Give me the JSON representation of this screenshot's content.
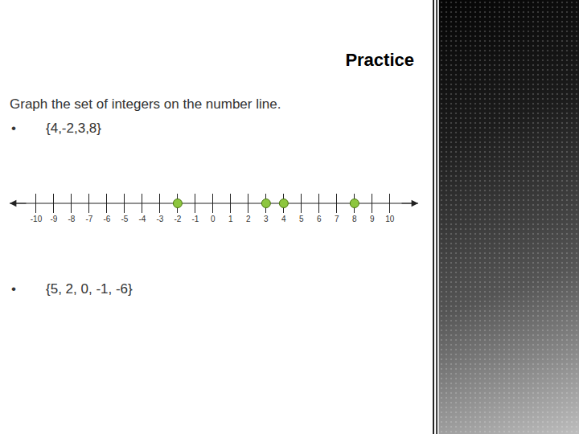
{
  "slide": {
    "title": "Practice",
    "instruction": "Graph the set of integers on the number line.",
    "items": [
      {
        "bullet": "•",
        "set": "{4,-2,3,8}"
      },
      {
        "bullet": "•",
        "set": "{5, 2, 0, -1, -6}"
      }
    ]
  },
  "chart_data": {
    "type": "scatter",
    "x": [
      -2,
      3,
      4,
      8
    ],
    "color": "#8dc63f",
    "xlim": [
      -11.5,
      11.6
    ],
    "xticks": [
      -10,
      -9,
      -8,
      -7,
      -6,
      -5,
      -4,
      -3,
      -2,
      -1,
      0,
      1,
      2,
      3,
      4,
      5,
      6,
      7,
      8,
      9,
      10
    ],
    "tick_labels": "x"
  }
}
